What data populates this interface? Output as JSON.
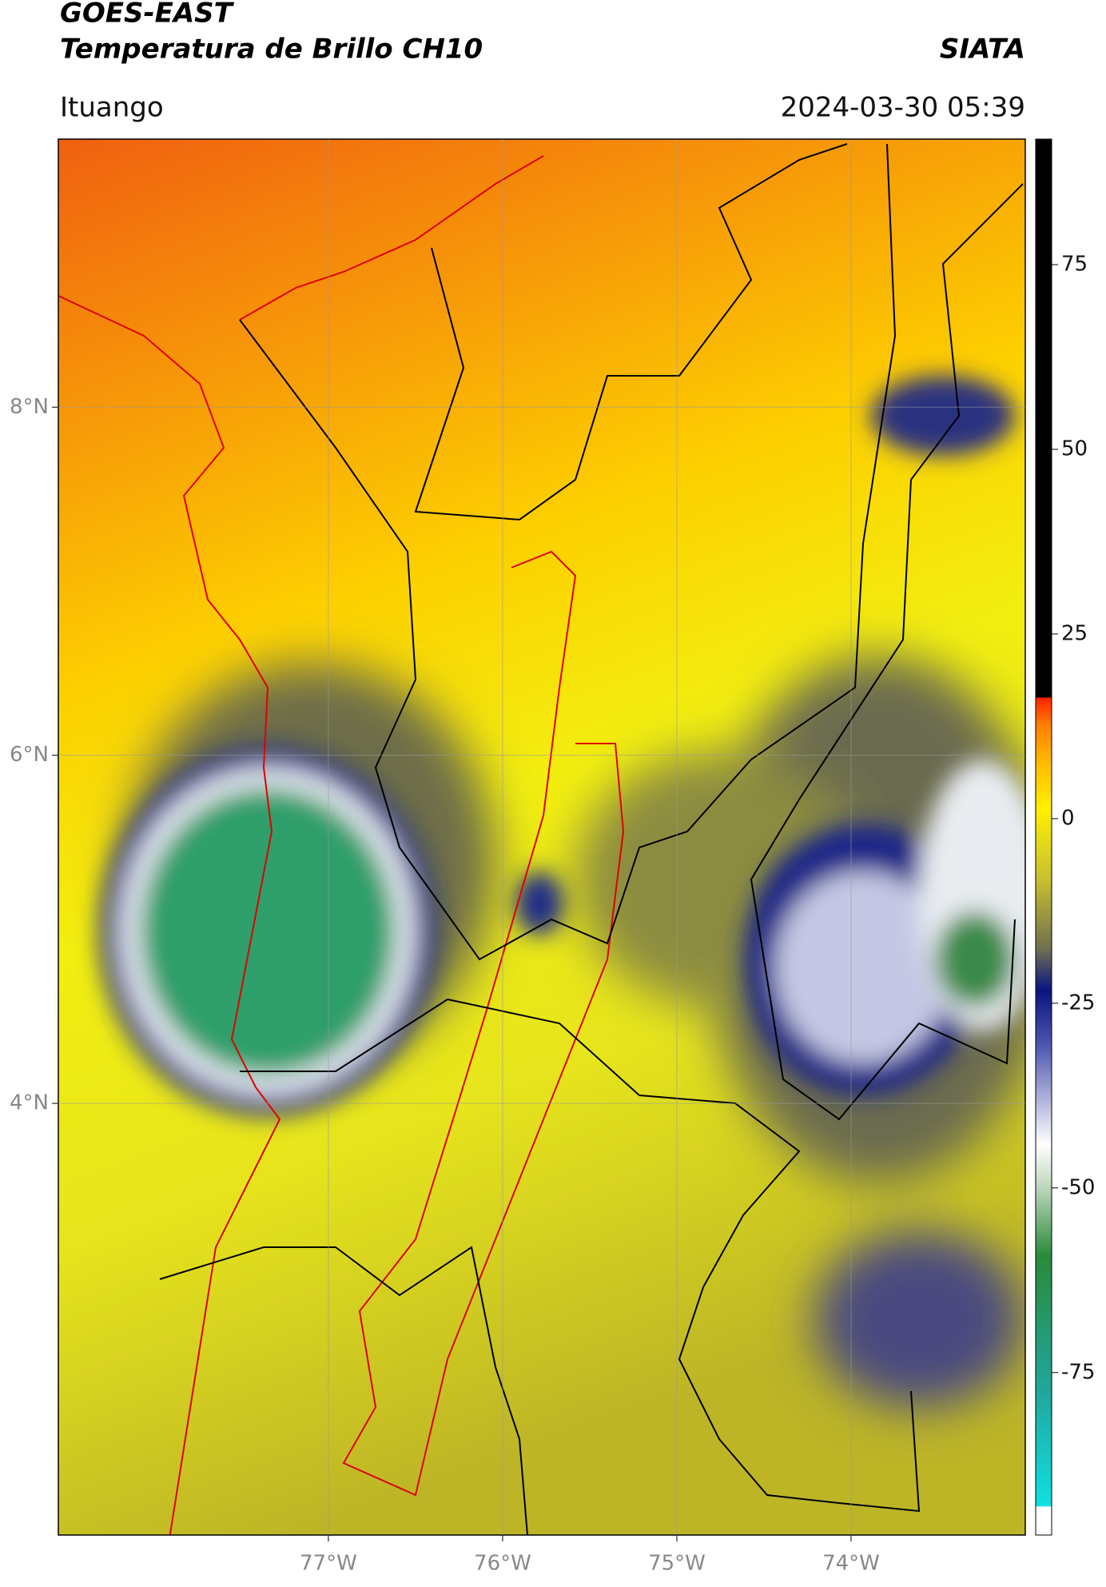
{
  "header": {
    "title": "GOES-EAST",
    "subtitle": "Temperatura de Brillo CH10",
    "source": "SIATA",
    "location": "Ituango",
    "datetime": "2024-03-30 05:39"
  },
  "map": {
    "xlim": [
      -78.55,
      -73.0
    ],
    "ylim": [
      1.52,
      9.54
    ],
    "xticks": [
      {
        "value": -77,
        "label": "77°W"
      },
      {
        "value": -76,
        "label": "76°W"
      },
      {
        "value": -75,
        "label": "75°W"
      },
      {
        "value": -74,
        "label": "74°W"
      }
    ],
    "yticks": [
      {
        "value": 8,
        "label": "8°N"
      },
      {
        "value": 6,
        "label": "6°N"
      },
      {
        "value": 4,
        "label": "4°N"
      }
    ],
    "grid": true
  },
  "colorbar": {
    "lim": [
      -97,
      92
    ],
    "ticks": [
      75,
      50,
      25,
      0,
      -25,
      -50,
      -75
    ]
  }
}
